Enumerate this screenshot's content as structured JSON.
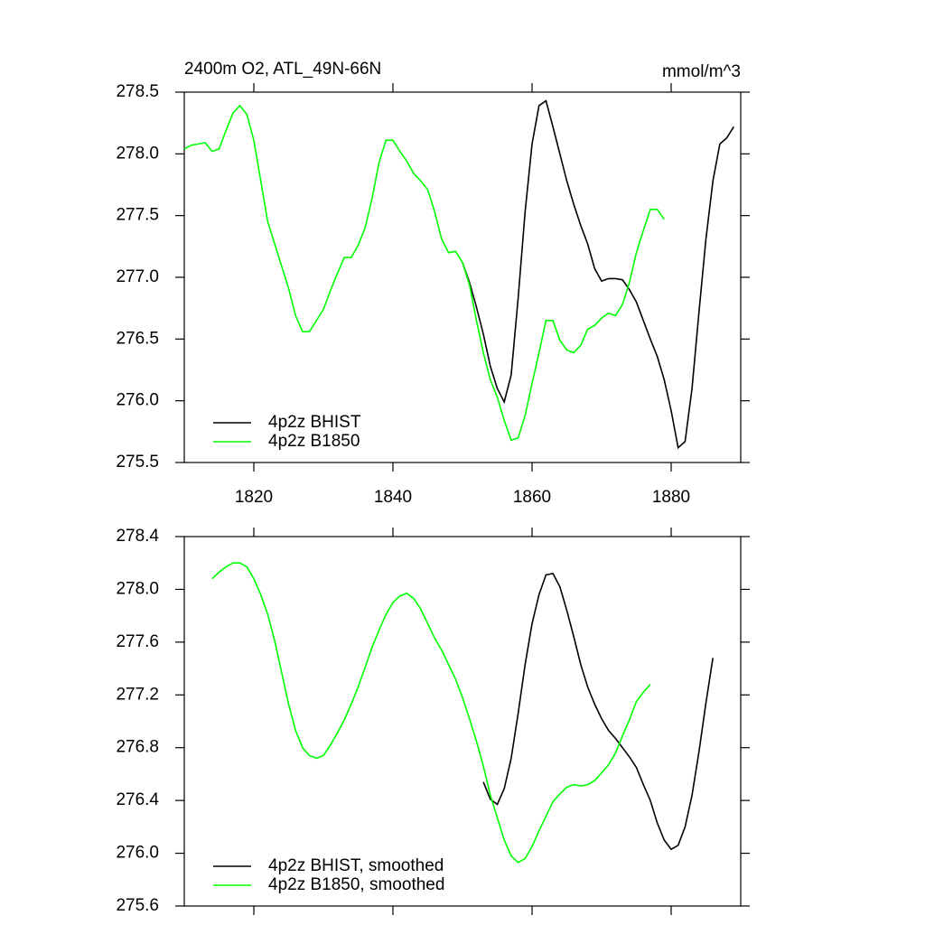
{
  "chart_data": [
    {
      "type": "line",
      "title": "2400m O2, ATL_49N-66N",
      "units": "mmol/m^3",
      "xlim": [
        1810,
        1890
      ],
      "xticks": [
        1820,
        1840,
        1860,
        1880
      ],
      "ylim": [
        275.5,
        278.5
      ],
      "yticks": [
        275.5,
        {
          "value": 276,
          "label": "276.0"
        },
        276.5,
        {
          "value": 277,
          "label": "277.0"
        },
        277.5,
        {
          "value": 278,
          "label": "278.0"
        },
        278.5
      ],
      "legend": "lower left",
      "series": [
        {
          "name": "4p2z BHIST",
          "color": "#000000",
          "x": [
            1850,
            1851,
            1852,
            1853,
            1854,
            1855,
            1856,
            1857,
            1858,
            1859,
            1860,
            1861,
            1862,
            1863,
            1864,
            1865,
            1866,
            1867,
            1868,
            1869,
            1870,
            1871,
            1872,
            1873,
            1874,
            1875,
            1876,
            1877,
            1878,
            1879,
            1880,
            1881,
            1882,
            1883,
            1884,
            1885,
            1886,
            1887,
            1888,
            1889
          ],
          "values": [
            277.12,
            276.96,
            276.76,
            276.54,
            276.28,
            276.1,
            275.99,
            276.21,
            276.83,
            277.53,
            278.08,
            278.39,
            278.43,
            278.22,
            278.0,
            277.78,
            277.59,
            277.42,
            277.27,
            277.07,
            276.97,
            276.99,
            276.99,
            276.98,
            276.9,
            276.8,
            276.65,
            276.5,
            276.36,
            276.17,
            275.92,
            275.62,
            275.67,
            276.1,
            276.72,
            277.31,
            277.78,
            278.08,
            278.13,
            278.22
          ]
        },
        {
          "name": "4p2z B1850",
          "color": "#00ff00",
          "x": [
            1810,
            1811,
            1812,
            1813,
            1814,
            1815,
            1816,
            1817,
            1818,
            1819,
            1820,
            1821,
            1822,
            1823,
            1824,
            1825,
            1826,
            1827,
            1828,
            1829,
            1830,
            1831,
            1832,
            1833,
            1834,
            1835,
            1836,
            1837,
            1838,
            1839,
            1840,
            1841,
            1842,
            1843,
            1844,
            1845,
            1846,
            1847,
            1848,
            1849,
            1850,
            1851,
            1852,
            1853,
            1854,
            1855,
            1856,
            1857,
            1858,
            1859,
            1860,
            1861,
            1862,
            1863,
            1864,
            1865,
            1866,
            1867,
            1868,
            1869,
            1870,
            1871,
            1872,
            1873,
            1874,
            1875,
            1876,
            1877,
            1878,
            1879
          ],
          "values": [
            278.04,
            278.07,
            278.08,
            278.09,
            278.02,
            278.04,
            278.19,
            278.33,
            278.39,
            278.32,
            278.11,
            277.78,
            277.45,
            277.27,
            277.09,
            276.91,
            276.69,
            276.56,
            276.56,
            276.65,
            276.74,
            276.89,
            277.03,
            277.16,
            277.16,
            277.26,
            277.4,
            277.64,
            277.93,
            278.11,
            278.11,
            278.02,
            277.94,
            277.84,
            277.78,
            277.71,
            277.53,
            277.31,
            277.2,
            277.21,
            277.12,
            276.94,
            276.65,
            276.39,
            276.17,
            276.03,
            275.84,
            275.68,
            275.7,
            275.88,
            276.14,
            276.39,
            276.65,
            276.65,
            276.49,
            276.41,
            276.39,
            276.45,
            276.58,
            276.61,
            276.67,
            276.71,
            276.69,
            276.78,
            276.96,
            277.2,
            277.38,
            277.55,
            277.55,
            277.47
          ]
        }
      ]
    },
    {
      "type": "line",
      "xlim": [
        1810,
        1890
      ],
      "xticks": [
        1820,
        1840,
        1860,
        1880
      ],
      "xtick_labels": false,
      "ylim": [
        275.6,
        278.4
      ],
      "yticks": [
        275.6,
        {
          "value": 276,
          "label": "276.0"
        },
        276.4,
        276.8,
        277.2,
        277.6,
        {
          "value": 278,
          "label": "278.0"
        },
        278.4
      ],
      "legend": "lower left",
      "series": [
        {
          "name": "4p2z BHIST, smoothed",
          "color": "#000000",
          "x": [
            1853,
            1854,
            1855,
            1856,
            1857,
            1858,
            1859,
            1860,
            1861,
            1862,
            1863,
            1864,
            1865,
            1866,
            1867,
            1868,
            1869,
            1870,
            1871,
            1872,
            1873,
            1874,
            1875,
            1876,
            1877,
            1878,
            1879,
            1880,
            1881,
            1882,
            1883,
            1884,
            1885,
            1886
          ],
          "values": [
            276.54,
            276.41,
            276.37,
            276.49,
            276.72,
            277.06,
            277.43,
            277.74,
            277.96,
            278.11,
            278.12,
            278.02,
            277.84,
            277.64,
            277.43,
            277.26,
            277.13,
            277.02,
            276.93,
            276.87,
            276.8,
            276.73,
            276.65,
            276.52,
            276.4,
            276.23,
            276.1,
            276.03,
            276.06,
            276.2,
            276.44,
            276.77,
            277.14,
            277.48
          ]
        },
        {
          "name": "4p2z B1850, smoothed",
          "color": "#00ff00",
          "x": [
            1814,
            1815,
            1816,
            1817,
            1818,
            1819,
            1820,
            1821,
            1822,
            1823,
            1824,
            1825,
            1826,
            1827,
            1828,
            1829,
            1830,
            1831,
            1832,
            1833,
            1834,
            1835,
            1836,
            1837,
            1838,
            1839,
            1840,
            1841,
            1842,
            1843,
            1844,
            1845,
            1846,
            1847,
            1848,
            1849,
            1850,
            1851,
            1852,
            1853,
            1854,
            1855,
            1856,
            1857,
            1858,
            1859,
            1860,
            1861,
            1862,
            1863,
            1864,
            1865,
            1866,
            1867,
            1868,
            1869,
            1870,
            1871,
            1872,
            1873,
            1874,
            1875,
            1876,
            1877
          ],
          "values": [
            278.08,
            278.13,
            278.17,
            278.2,
            278.2,
            278.17,
            278.08,
            277.96,
            277.81,
            277.61,
            277.37,
            277.13,
            276.93,
            276.8,
            276.74,
            276.72,
            276.74,
            276.82,
            276.91,
            277.01,
            277.13,
            277.26,
            277.41,
            277.56,
            277.69,
            277.81,
            277.9,
            277.95,
            277.97,
            277.93,
            277.85,
            277.74,
            277.63,
            277.54,
            277.43,
            277.32,
            277.18,
            277.02,
            276.85,
            276.66,
            276.44,
            276.27,
            276.1,
            275.98,
            275.93,
            275.96,
            276.05,
            276.17,
            276.28,
            276.39,
            276.45,
            276.5,
            276.52,
            276.51,
            276.52,
            276.55,
            276.61,
            276.67,
            276.76,
            276.89,
            277.01,
            277.15,
            277.22,
            277.28
          ]
        }
      ]
    }
  ]
}
